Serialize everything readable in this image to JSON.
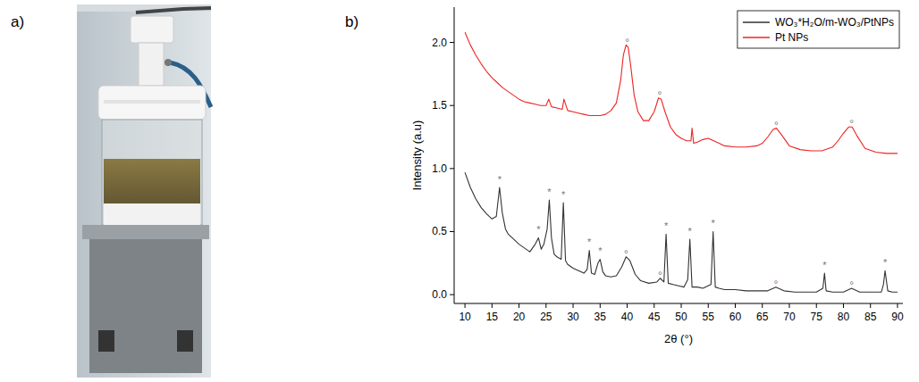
{
  "panel_a": {
    "label": "a)"
  },
  "chart_data": {
    "type": "line",
    "panel_label": "b)",
    "x_label": "2θ (°)",
    "y_label": "Intensity (a.u)",
    "xlim": [
      8,
      91
    ],
    "ylim": [
      -0.07,
      2.28
    ],
    "xticks": [
      10,
      15,
      20,
      25,
      30,
      35,
      40,
      45,
      50,
      55,
      60,
      65,
      70,
      75,
      80,
      85,
      90
    ],
    "yticks": [
      {
        "value": 0,
        "label": "0.0"
      },
      {
        "value": 0.5,
        "label": "0.5"
      },
      {
        "value": 1,
        "label": "1.0"
      },
      {
        "value": 1.5,
        "label": "1.5"
      },
      {
        "value": 2,
        "label": "2.0"
      }
    ],
    "grid": false,
    "legend": "upper right",
    "series": [
      {
        "name": "WO₃*H₂O/m-WO₃/PtNPs",
        "color": "#333333",
        "x": [
          10,
          11,
          12,
          13,
          14,
          15,
          15.8,
          16.4,
          16.9,
          17.5,
          18,
          19,
          20,
          21,
          22,
          23,
          23.6,
          24.1,
          24.6,
          25.2,
          25.6,
          26,
          26.5,
          27,
          27.8,
          28.2,
          28.6,
          29,
          30,
          31,
          32,
          32.6,
          33,
          33.4,
          34,
          34.6,
          35,
          35.5,
          36,
          37,
          38,
          39,
          39.8,
          40.5,
          41.5,
          42.5,
          44,
          45.5,
          46.1,
          46.8,
          47.2,
          47.6,
          48.5,
          49.5,
          50.5,
          51.2,
          51.6,
          52,
          53,
          54,
          55.5,
          55.9,
          56.3,
          57,
          58,
          60,
          62,
          64,
          66,
          67.5,
          69,
          71,
          73,
          75,
          76.2,
          76.5,
          76.8,
          78,
          80,
          81.5,
          83,
          85,
          87,
          87.4,
          87.7,
          88.2,
          89,
          90
        ],
        "values": [
          0.97,
          0.85,
          0.76,
          0.69,
          0.64,
          0.6,
          0.62,
          0.85,
          0.65,
          0.52,
          0.48,
          0.44,
          0.4,
          0.37,
          0.34,
          0.4,
          0.45,
          0.36,
          0.4,
          0.52,
          0.75,
          0.45,
          0.32,
          0.3,
          0.28,
          0.73,
          0.27,
          0.24,
          0.21,
          0.19,
          0.17,
          0.2,
          0.35,
          0.17,
          0.16,
          0.25,
          0.28,
          0.18,
          0.15,
          0.14,
          0.15,
          0.22,
          0.3,
          0.27,
          0.16,
          0.11,
          0.09,
          0.1,
          0.13,
          0.1,
          0.48,
          0.09,
          0.08,
          0.07,
          0.06,
          0.12,
          0.44,
          0.06,
          0.06,
          0.05,
          0.08,
          0.5,
          0.06,
          0.05,
          0.04,
          0.04,
          0.03,
          0.03,
          0.03,
          0.06,
          0.03,
          0.02,
          0.02,
          0.02,
          0.05,
          0.17,
          0.03,
          0.02,
          0.02,
          0.05,
          0.02,
          0.02,
          0.02,
          0.08,
          0.19,
          0.03,
          0.02,
          0.02
        ]
      },
      {
        "name": "Pt NPs",
        "color": "#ee2222",
        "x": [
          10,
          11,
          12,
          13,
          14,
          15,
          16,
          17,
          18,
          19,
          20,
          21,
          22,
          23,
          24,
          25,
          25.5,
          26,
          27,
          28,
          28.3,
          29,
          30,
          31,
          32,
          33,
          34,
          35,
          36,
          37,
          38,
          38.8,
          39.3,
          39.8,
          40.2,
          40.7,
          41.3,
          42,
          43,
          44,
          45,
          45.8,
          46.3,
          47,
          48,
          49,
          50,
          51,
          51.8,
          52,
          52.3,
          53,
          54,
          55,
          56,
          57,
          58,
          60,
          62,
          64,
          65,
          66,
          67,
          67.6,
          68.5,
          70,
          72,
          74,
          76,
          78,
          79,
          80,
          81,
          81.6,
          82.5,
          84,
          86,
          88,
          90
        ],
        "values": [
          2.08,
          1.98,
          1.9,
          1.83,
          1.77,
          1.72,
          1.68,
          1.64,
          1.61,
          1.58,
          1.55,
          1.53,
          1.52,
          1.51,
          1.5,
          1.5,
          1.55,
          1.49,
          1.48,
          1.47,
          1.55,
          1.46,
          1.45,
          1.44,
          1.43,
          1.42,
          1.42,
          1.42,
          1.43,
          1.46,
          1.52,
          1.7,
          1.9,
          1.98,
          1.96,
          1.8,
          1.58,
          1.45,
          1.38,
          1.38,
          1.45,
          1.56,
          1.55,
          1.45,
          1.33,
          1.27,
          1.24,
          1.22,
          1.22,
          1.32,
          1.2,
          1.21,
          1.23,
          1.24,
          1.22,
          1.2,
          1.18,
          1.17,
          1.17,
          1.18,
          1.2,
          1.25,
          1.31,
          1.32,
          1.27,
          1.18,
          1.15,
          1.14,
          1.14,
          1.17,
          1.22,
          1.28,
          1.33,
          1.33,
          1.26,
          1.16,
          1.13,
          1.12,
          1.12
        ]
      }
    ],
    "annotations": [
      {
        "text": "°",
        "x": 40,
        "y": 2.0
      },
      {
        "text": "°",
        "x": 46,
        "y": 1.58
      },
      {
        "text": "°",
        "x": 67.6,
        "y": 1.34
      },
      {
        "text": "°",
        "x": 81.5,
        "y": 1.35
      },
      {
        "text": "*",
        "x": 16.4,
        "y": 0.88
      },
      {
        "text": "*",
        "x": 23.6,
        "y": 0.48
      },
      {
        "text": "*",
        "x": 25.6,
        "y": 0.78
      },
      {
        "text": "*",
        "x": 28.2,
        "y": 0.76
      },
      {
        "text": "*",
        "x": 33,
        "y": 0.38
      },
      {
        "text": "*",
        "x": 35,
        "y": 0.31
      },
      {
        "text": "°",
        "x": 39.8,
        "y": 0.32
      },
      {
        "text": "°",
        "x": 46.1,
        "y": 0.15
      },
      {
        "text": "*",
        "x": 47.2,
        "y": 0.51
      },
      {
        "text": "*",
        "x": 51.6,
        "y": 0.47
      },
      {
        "text": "*",
        "x": 55.9,
        "y": 0.53
      },
      {
        "text": "°",
        "x": 67.5,
        "y": 0.08
      },
      {
        "text": "*",
        "x": 76.5,
        "y": 0.2
      },
      {
        "text": "°",
        "x": 81.5,
        "y": 0.07
      },
      {
        "text": "*",
        "x": 87.7,
        "y": 0.22
      }
    ]
  }
}
